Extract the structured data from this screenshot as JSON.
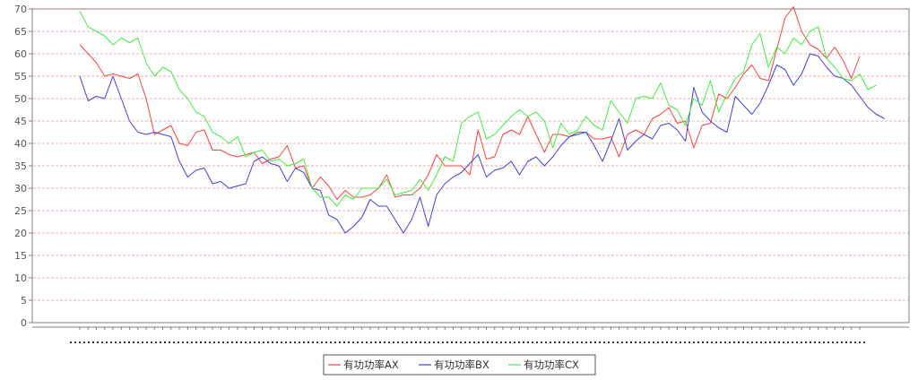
{
  "chart_data": {
    "type": "line",
    "title": "",
    "xlabel": "",
    "ylabel": "",
    "ylim": [
      0,
      70
    ],
    "yticks": [
      0,
      5,
      10,
      15,
      20,
      25,
      30,
      35,
      40,
      45,
      50,
      55,
      60,
      65,
      70
    ],
    "grid": true,
    "legend_position": "bottom",
    "series": [
      {
        "name": "有功功率AX",
        "color": "#ff4040",
        "values": [
          62,
          60,
          58,
          55,
          55.5,
          55,
          54.5,
          55.5,
          50,
          42,
          43,
          44,
          40,
          39.5,
          42.5,
          43,
          38.5,
          38.5,
          37.5,
          37,
          37.5,
          38,
          35.5,
          36.5,
          37,
          39.5,
          34.5,
          35,
          30,
          32.5,
          30.5,
          27.5,
          29.5,
          28,
          28,
          28.5,
          30,
          33,
          28,
          28.5,
          28.5,
          30,
          33,
          37.5,
          35,
          35,
          35,
          33,
          43,
          36.5,
          37,
          42,
          43,
          42,
          46,
          42,
          38,
          42,
          42,
          41.5,
          42.5,
          42.5,
          41,
          41,
          41.5,
          37,
          42,
          43,
          42,
          45.5,
          46.5,
          48,
          44.5,
          45,
          39,
          44,
          44.5,
          51,
          50,
          52.5,
          55.5,
          57.5,
          54.5,
          54,
          61,
          68,
          70.5,
          65,
          62,
          61,
          59,
          61.5,
          58.5,
          54.5,
          59.5
        ]
      },
      {
        "name": "有功功率BX",
        "color": "#4040e0",
        "values": [
          55,
          49.5,
          50.5,
          50,
          55,
          50,
          45,
          42.5,
          42,
          42.5,
          42,
          41.5,
          36,
          32.5,
          34,
          34.5,
          31,
          31.5,
          30,
          30.5,
          31,
          36,
          37,
          35.5,
          35,
          31.5,
          34.5,
          33.5,
          30,
          29.5,
          24,
          23,
          20,
          21.5,
          23.5,
          27.5,
          26,
          26,
          23,
          20,
          23,
          28,
          21.5,
          28.5,
          31,
          32.5,
          33.5,
          35.5,
          37.5,
          32.5,
          34,
          34.5,
          36,
          33,
          36,
          37,
          35,
          37,
          39.5,
          41.5,
          42,
          42.5,
          39.5,
          36,
          40.5,
          45.5,
          38.5,
          40.5,
          42,
          41,
          44,
          44.5,
          43,
          40.5,
          52.5,
          47,
          45,
          43.5,
          42.5,
          50.5,
          48.5,
          46.5,
          49,
          53,
          57.5,
          56.5,
          53,
          55.5,
          60,
          59.5,
          57,
          55,
          54.5,
          53,
          50.5,
          48,
          46.5,
          45.5
        ]
      },
      {
        "name": "有功功率CX",
        "color": "#40f040",
        "values": [
          69.5,
          66,
          65,
          64,
          62,
          63.5,
          62.5,
          63.5,
          58,
          55,
          57,
          56,
          52,
          50,
          47,
          46,
          42.5,
          41.5,
          40,
          41.5,
          37,
          38,
          38.5,
          36,
          36.5,
          35,
          35.5,
          36.5,
          30,
          28,
          28,
          26,
          28.5,
          27.5,
          30,
          30,
          30,
          32,
          28.5,
          29,
          29.5,
          32,
          29.5,
          33,
          37,
          36,
          44.5,
          46,
          47,
          41,
          42,
          44,
          46,
          47.5,
          46,
          47,
          45,
          39,
          44.5,
          42,
          43,
          46,
          44,
          43,
          49.5,
          47,
          44.5,
          50,
          50.5,
          50,
          53.5,
          48.5,
          47.5,
          44,
          50,
          48.5,
          54,
          47,
          51,
          54.5,
          56,
          62,
          64.5,
          57,
          61.5,
          60,
          63.5,
          62,
          65,
          66,
          59,
          57,
          54.5,
          54,
          55.5,
          52,
          53
        ]
      }
    ]
  }
}
